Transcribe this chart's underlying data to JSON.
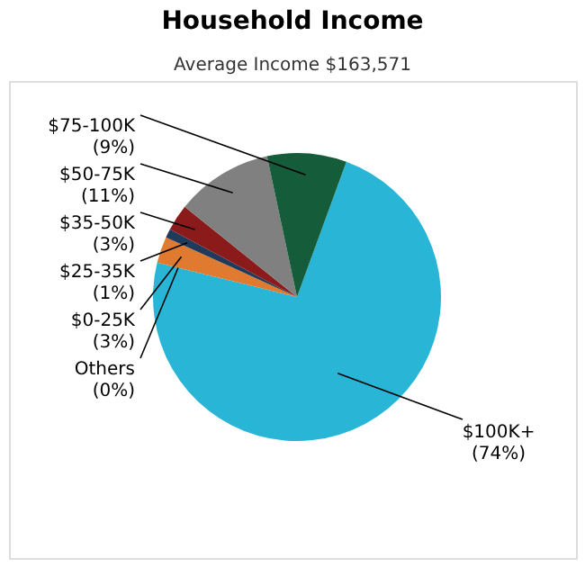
{
  "chart_data": {
    "type": "pie",
    "title": "Household Income",
    "subtitle": "Average Income  $163,571",
    "categories": [
      "$100K+",
      "Others",
      "$0-25K",
      "$25-35K",
      "$35-50K",
      "$50-75K",
      "$75-100K"
    ],
    "values": [
      74,
      0,
      3,
      1,
      3,
      11,
      9
    ],
    "value_labels": [
      "(74%)",
      "(0%)",
      "(3%)",
      "(1%)",
      "(3%)",
      "(11%)",
      "(9%)"
    ],
    "colors": [
      "#29b6d6",
      "#b0b0b0",
      "#e07a30",
      "#1f3a5a",
      "#8b1a1a",
      "#808080",
      "#145c3a"
    ],
    "legend": false
  }
}
